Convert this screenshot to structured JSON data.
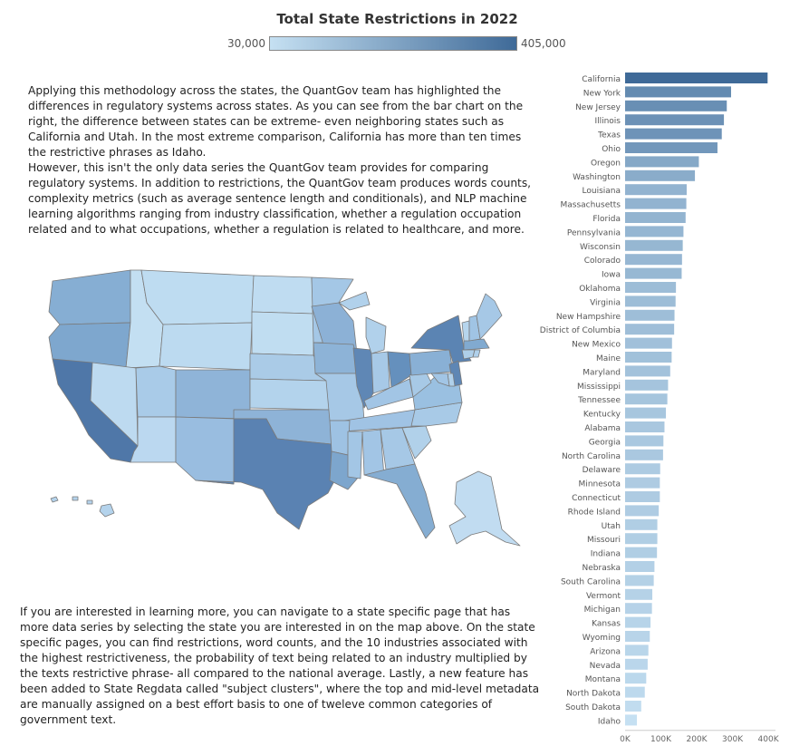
{
  "title": "Total State Restrictions in 2022",
  "legend": {
    "min_label": "30,000",
    "max_label": "405,000",
    "color_low": "#c5e0f2",
    "color_high": "#3f6a98"
  },
  "paragraphs": {
    "p1": "Applying this methodology across the states, the QuantGov team has highlighted the differences in regulatory systems across states. As you can see from the bar chart on the right, the difference between states can be extreme- even neighboring states such as California and Utah. In the most extreme comparison, California has more than ten times the restrictive phrases as Idaho.",
    "p2": "However, this isn't the only data series the QuantGov team provides for comparing regulatory systems. In addition to restrictions, the QuantGov team produces words counts, complexity metrics (such as average sentence length and conditionals), and NLP machine learning algorithms ranging from industry classification, whether a regulation occupation related and to what occupations, whether a regulation is related to healthcare, and more.",
    "p3": "If you are interested in learning more, you can navigate to a state specific page that has more data series by selecting the state you are interested in on the map above. On the state specific pages, you can find restrictions, word counts, and the 10 industries associated with the highest restrictiveness, the probability of text being related to an industry multiplied by the texts restrictive phrase- all compared to the national average. Lastly, a new feature has been added to State Regdata called \"subject clusters\", where the top and mid-level metadata are manually assigned on a best effort basis to one of tweleve common categories of government text."
  },
  "chart_data": {
    "type": "bar",
    "orientation": "horizontal",
    "title": "Total State Restrictions in 2022",
    "xlim": [
      0,
      420000
    ],
    "x_ticks": [
      "0K",
      "100K",
      "200K",
      "300K",
      "400K"
    ],
    "x_tick_values": [
      0,
      100000,
      200000,
      300000,
      400000
    ],
    "categories": [
      "California",
      "New York",
      "New Jersey",
      "Illinois",
      "Texas",
      "Ohio",
      "Oregon",
      "Washington",
      "Louisiana",
      "Massachusetts",
      "Florida",
      "Pennsylvania",
      "Wisconsin",
      "Colorado",
      "Iowa",
      "Oklahoma",
      "Virginia",
      "New Hampshire",
      "District of Columbia",
      "New Mexico",
      "Maine",
      "Maryland",
      "Mississippi",
      "Tennessee",
      "Kentucky",
      "Alabama",
      "Georgia",
      "North Carolina",
      "Delaware",
      "Minnesota",
      "Connecticut",
      "Rhode Island",
      "Utah",
      "Missouri",
      "Indiana",
      "Nebraska",
      "South Carolina",
      "Vermont",
      "Michigan",
      "Kansas",
      "Wyoming",
      "Arizona",
      "Nevada",
      "Montana",
      "North Dakota",
      "South Dakota",
      "Idaho"
    ],
    "values": [
      398000,
      296000,
      284000,
      276000,
      270000,
      258000,
      206000,
      195000,
      172000,
      171000,
      169000,
      163000,
      161000,
      159000,
      158000,
      142000,
      141000,
      138000,
      137000,
      131000,
      130000,
      126000,
      120000,
      118000,
      114000,
      110000,
      107000,
      106000,
      98000,
      97000,
      97000,
      94000,
      90000,
      90000,
      89000,
      82000,
      80000,
      76000,
      75000,
      71000,
      69000,
      65000,
      63000,
      59000,
      55000,
      45000,
      33000
    ]
  }
}
